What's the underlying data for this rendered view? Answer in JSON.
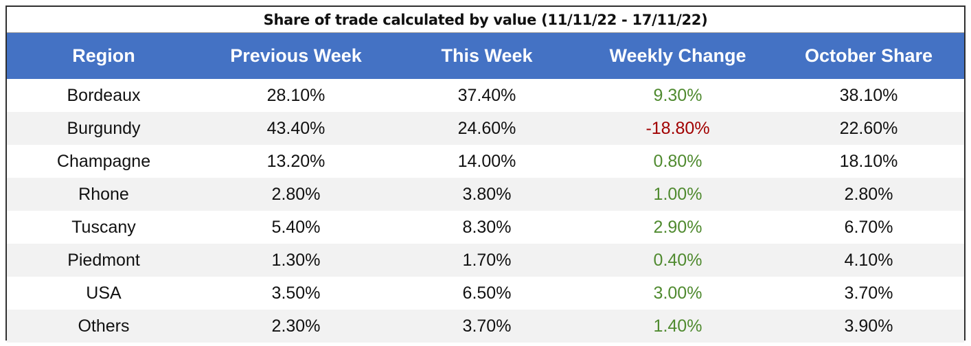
{
  "table": {
    "title": "Share of trade calculated by value (11/11/22 - 17/11/22)",
    "headers": [
      "Region",
      "Previous Week",
      "This Week",
      "Weekly Change",
      "October Share"
    ],
    "rows": [
      [
        "Bordeaux",
        "28.10%",
        "37.40%",
        "9.30%",
        "38.10%"
      ],
      [
        "Burgundy",
        "43.40%",
        "24.60%",
        "-18.80%",
        "22.60%"
      ],
      [
        "Champagne",
        "13.20%",
        "14.00%",
        "0.80%",
        "18.10%"
      ],
      [
        "Rhone",
        "2.80%",
        "3.80%",
        "1.00%",
        "2.80%"
      ],
      [
        "Tuscany",
        "5.40%",
        "8.30%",
        "2.90%",
        "6.70%"
      ],
      [
        "Piedmont",
        "1.30%",
        "1.70%",
        "0.40%",
        "4.10%"
      ],
      [
        "USA",
        "3.50%",
        "6.50%",
        "3.00%",
        "3.70%"
      ],
      [
        "Others",
        "2.30%",
        "3.70%",
        "1.40%",
        "3.90%"
      ]
    ]
  },
  "colors": {
    "header_bg": "#4472c4",
    "header_text": "#ffffff",
    "positive_change": "#4f8a2f",
    "negative_change": "#a10000",
    "stripe": "#f2f2f2"
  },
  "chart_data": {
    "type": "table",
    "title": "Share of trade calculated by value (11/11/22 - 17/11/22)",
    "columns": [
      "Region",
      "Previous Week",
      "This Week",
      "Weekly Change",
      "October Share"
    ],
    "categories": [
      "Bordeaux",
      "Burgundy",
      "Champagne",
      "Rhone",
      "Tuscany",
      "Piedmont",
      "USA",
      "Others"
    ],
    "series": [
      {
        "name": "Previous Week",
        "values": [
          28.1,
          43.4,
          13.2,
          2.8,
          5.4,
          1.3,
          3.5,
          2.3
        ]
      },
      {
        "name": "This Week",
        "values": [
          37.4,
          24.6,
          14.0,
          3.8,
          8.3,
          1.7,
          6.5,
          3.7
        ]
      },
      {
        "name": "Weekly Change",
        "values": [
          9.3,
          -18.8,
          0.8,
          1.0,
          2.9,
          0.4,
          3.0,
          1.4
        ]
      },
      {
        "name": "October Share",
        "values": [
          38.1,
          22.6,
          18.1,
          2.8,
          6.7,
          4.1,
          3.7,
          3.9
        ]
      }
    ],
    "unit": "%"
  }
}
